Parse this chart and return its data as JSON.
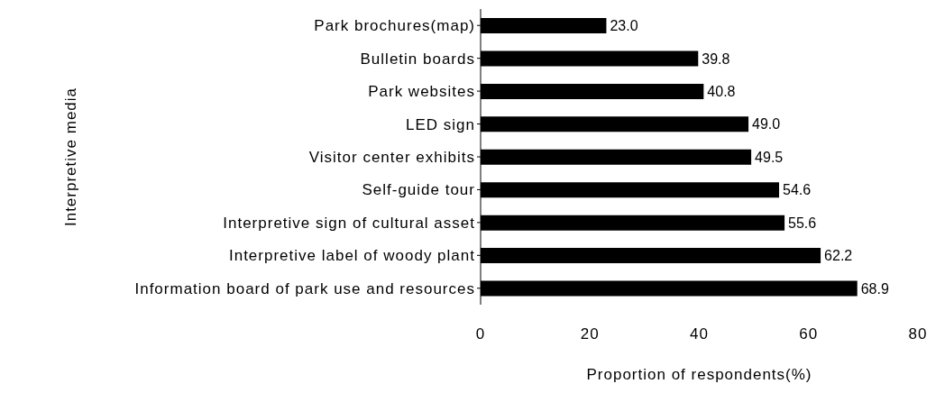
{
  "chart_data": {
    "type": "bar",
    "orientation": "horizontal",
    "xlabel": "Proportion of respondents(%)",
    "ylabel": "Interpretive media",
    "categories": [
      "Park brochures(map)",
      "Bulletin boards",
      "Park websites",
      "LED sign",
      "Visitor center exhibits",
      "Self-guide tour",
      "Interpretive sign of cultural asset",
      "Interpretive label of woody plant",
      "Information board of park use and resources"
    ],
    "values": [
      23.0,
      39.8,
      40.8,
      49.0,
      49.5,
      54.6,
      55.6,
      62.2,
      68.9
    ],
    "value_labels": [
      "23.0",
      "39.8",
      "40.8",
      "49.0",
      "49.5",
      "54.6",
      "55.6",
      "62.2",
      "68.9"
    ],
    "color": "#000000",
    "xlim": [
      0,
      80
    ],
    "xticks": [
      0,
      20,
      40,
      60,
      80
    ],
    "grid": false,
    "legend": false
  }
}
